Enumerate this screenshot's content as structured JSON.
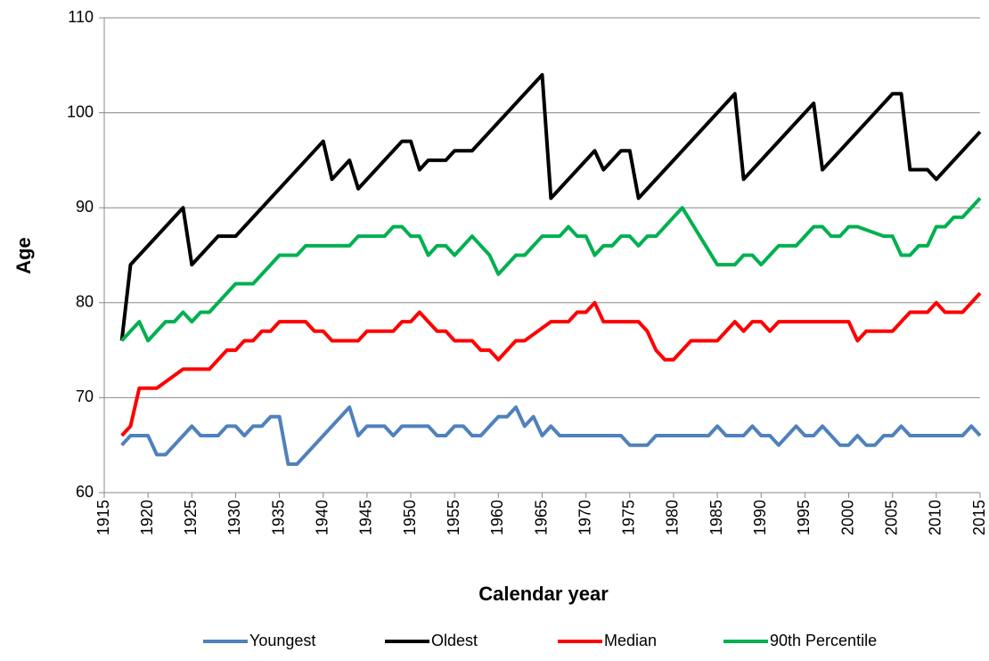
{
  "chart_data": {
    "type": "line",
    "x_label": "Calendar year",
    "y_label": "Age",
    "xlim": [
      1915,
      2015
    ],
    "xticks": [
      1915,
      1920,
      1925,
      1930,
      1935,
      1940,
      1945,
      1950,
      1955,
      1960,
      1965,
      1970,
      1975,
      1980,
      1985,
      1990,
      1995,
      2000,
      2005,
      2010,
      2015
    ],
    "ylim": [
      60,
      110
    ],
    "yticks": [
      60,
      70,
      80,
      90,
      100,
      110
    ],
    "grid": true,
    "legend": "bottom",
    "series": [
      {
        "name": "Youngest",
        "color": "#4f81bd",
        "x": [
          1917,
          1918,
          1920,
          1921,
          1922,
          1925,
          1926,
          1928,
          1929,
          1930,
          1931,
          1932,
          1933,
          1934,
          1935,
          1936,
          1937,
          1943,
          1944,
          1945,
          1947,
          1948,
          1949,
          1952,
          1953,
          1954,
          1955,
          1956,
          1957,
          1958,
          1960,
          1961,
          1962,
          1963,
          1964,
          1965,
          1966,
          1967,
          1974,
          1975,
          1977,
          1978,
          1984,
          1985,
          1986,
          1988,
          1989,
          1990,
          1991,
          1992,
          1994,
          1995,
          1996,
          1997,
          1999,
          2000,
          2001,
          2002,
          2003,
          2004,
          2005,
          2006,
          2007,
          2013,
          2014,
          2015
        ],
        "values": [
          65,
          66,
          66,
          64,
          64,
          67,
          66,
          66,
          67,
          67,
          66,
          67,
          67,
          68,
          68,
          63,
          63,
          69,
          66,
          67,
          67,
          66,
          67,
          67,
          66,
          66,
          67,
          67,
          66,
          66,
          68,
          68,
          69,
          67,
          68,
          66,
          67,
          66,
          66,
          65,
          65,
          66,
          66,
          67,
          66,
          66,
          67,
          66,
          66,
          65,
          67,
          66,
          66,
          67,
          65,
          65,
          66,
          65,
          65,
          66,
          66,
          67,
          66,
          66,
          67,
          66
        ]
      },
      {
        "name": "Oldest",
        "color": "#000000",
        "x": [
          1917,
          1918,
          1924,
          1925,
          1928,
          1930,
          1940,
          1941,
          1943,
          1944,
          1949,
          1950,
          1951,
          1952,
          1954,
          1955,
          1957,
          1965,
          1966,
          1971,
          1972,
          1974,
          1975,
          1976,
          1987,
          1988,
          1996,
          1997,
          2005,
          2006,
          2007,
          2009,
          2010,
          2015
        ],
        "values": [
          76,
          84,
          90,
          84,
          87,
          87,
          97,
          93,
          95,
          92,
          97,
          97,
          94,
          95,
          95,
          96,
          96,
          104,
          91,
          96,
          94,
          96,
          96,
          91,
          102,
          93,
          101,
          94,
          102,
          102,
          94,
          94,
          93,
          98
        ]
      },
      {
        "name": "Median",
        "color": "#ff0000",
        "x": [
          1917,
          1918,
          1919,
          1921,
          1924,
          1927,
          1929,
          1930,
          1931,
          1932,
          1933,
          1934,
          1935,
          1938,
          1939,
          1940,
          1941,
          1944,
          1945,
          1948,
          1949,
          1950,
          1951,
          1952,
          1953,
          1954,
          1955,
          1957,
          1958,
          1959,
          1960,
          1962,
          1963,
          1966,
          1968,
          1969,
          1970,
          1971,
          1972,
          1976,
          1977,
          1978,
          1979,
          1980,
          1982,
          1985,
          1987,
          1988,
          1989,
          1990,
          1991,
          1992,
          1995,
          2000,
          2001,
          2002,
          2005,
          2007,
          2009,
          2010,
          2011,
          2013,
          2015
        ],
        "values": [
          66,
          67,
          71,
          71,
          73,
          73,
          75,
          75,
          76,
          76,
          77,
          77,
          78,
          78,
          77,
          77,
          76,
          76,
          77,
          77,
          78,
          78,
          79,
          78,
          77,
          77,
          76,
          76,
          75,
          75,
          74,
          76,
          76,
          78,
          78,
          79,
          79,
          80,
          78,
          78,
          77,
          75,
          74,
          74,
          76,
          76,
          78,
          77,
          78,
          78,
          77,
          78,
          78,
          78,
          76,
          77,
          77,
          79,
          79,
          80,
          79,
          79,
          81
        ]
      },
      {
        "name": "90th Percentile",
        "color": "#00b050",
        "x": [
          1917,
          1918,
          1919,
          1920,
          1921,
          1922,
          1923,
          1924,
          1925,
          1926,
          1927,
          1930,
          1932,
          1935,
          1937,
          1938,
          1943,
          1944,
          1947,
          1948,
          1949,
          1950,
          1951,
          1952,
          1953,
          1954,
          1955,
          1957,
          1959,
          1960,
          1962,
          1963,
          1965,
          1967,
          1968,
          1969,
          1970,
          1971,
          1972,
          1973,
          1974,
          1975,
          1976,
          1977,
          1978,
          1981,
          1985,
          1987,
          1988,
          1989,
          1990,
          1992,
          1994,
          1996,
          1997,
          1998,
          1999,
          2000,
          2001,
          2004,
          2005,
          2006,
          2007,
          2008,
          2009,
          2010,
          2011,
          2012,
          2013,
          2015
        ],
        "values": [
          76,
          77,
          78,
          76,
          77,
          78,
          78,
          79,
          78,
          79,
          79,
          82,
          82,
          85,
          85,
          86,
          86,
          87,
          87,
          88,
          88,
          87,
          87,
          85,
          86,
          86,
          85,
          87,
          85,
          83,
          85,
          85,
          87,
          87,
          88,
          87,
          87,
          85,
          86,
          86,
          87,
          87,
          86,
          87,
          87,
          90,
          84,
          84,
          85,
          85,
          84,
          86,
          86,
          88,
          88,
          87,
          87,
          88,
          88,
          87,
          87,
          85,
          85,
          86,
          86,
          88,
          88,
          89,
          89,
          91
        ]
      }
    ]
  }
}
